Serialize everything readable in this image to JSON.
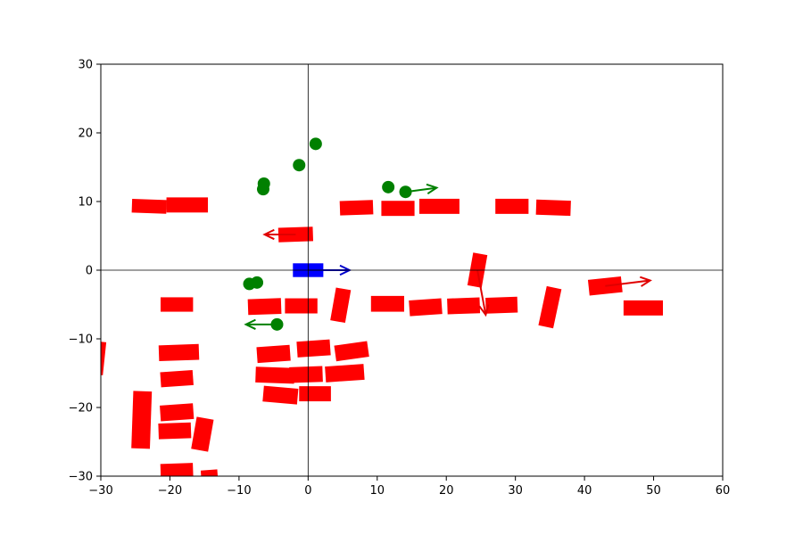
{
  "chart_data": {
    "type": "scatter",
    "title": "",
    "xlabel": "",
    "ylabel": "",
    "xlim": [
      -30,
      60
    ],
    "ylim": [
      -30,
      30
    ],
    "grid": false,
    "origin_axes": true,
    "colors": {
      "ego": "#0000ff",
      "vehicle": "#ff0000",
      "pedestrian": "#008000",
      "ego_arrow": "#0000cc",
      "vehicle_arrow": "#e00000",
      "pedestrian_arrow": "#008000"
    },
    "x_ticks": [
      {
        "value": -30,
        "label": "−30"
      },
      {
        "value": -20,
        "label": "−20"
      },
      {
        "value": -10,
        "label": "−10"
      },
      {
        "value": 0,
        "label": "0"
      },
      {
        "value": 10,
        "label": "10"
      },
      {
        "value": 20,
        "label": "20"
      },
      {
        "value": 30,
        "label": "30"
      },
      {
        "value": 40,
        "label": "40"
      },
      {
        "value": 50,
        "label": "50"
      },
      {
        "value": 60,
        "label": "60"
      }
    ],
    "y_ticks": [
      {
        "value": -30,
        "label": "−30"
      },
      {
        "value": -20,
        "label": "−20"
      },
      {
        "value": -10,
        "label": "−10"
      },
      {
        "value": 0,
        "label": "0"
      },
      {
        "value": 10,
        "label": "10"
      },
      {
        "value": 20,
        "label": "20"
      },
      {
        "value": 30,
        "label": "30"
      }
    ],
    "ego": {
      "x": 0,
      "y": 0,
      "length": 4.4,
      "width": 2.0,
      "heading": 0,
      "velocity": [
        6.0,
        0
      ]
    },
    "vehicles": [
      {
        "x": -23.0,
        "y": 9.3,
        "length": 5.0,
        "width": 2.0,
        "heading": -2
      },
      {
        "x": -17.5,
        "y": 9.5,
        "length": 6.0,
        "width": 2.2,
        "heading": 0
      },
      {
        "x": -1.8,
        "y": 5.2,
        "length": 5.0,
        "width": 2.1,
        "heading": 2,
        "velocity": [
          -4.5,
          0
        ]
      },
      {
        "x": 7.0,
        "y": 9.1,
        "length": 4.8,
        "width": 2.1,
        "heading": 2
      },
      {
        "x": 13.0,
        "y": 9.0,
        "length": 4.8,
        "width": 2.2,
        "heading": 0
      },
      {
        "x": 19.0,
        "y": 9.3,
        "length": 5.8,
        "width": 2.2,
        "heading": 0
      },
      {
        "x": 29.5,
        "y": 9.3,
        "length": 4.8,
        "width": 2.2,
        "heading": 0
      },
      {
        "x": 35.5,
        "y": 9.1,
        "length": 5.0,
        "width": 2.2,
        "heading": -2
      },
      {
        "x": 24.5,
        "y": 0.0,
        "length": 4.8,
        "width": 2.1,
        "heading": 80,
        "velocity": [
          1.2,
          -6.5
        ]
      },
      {
        "x": -19.0,
        "y": -5.0,
        "length": 4.7,
        "width": 2.1,
        "heading": 0
      },
      {
        "x": -6.3,
        "y": -5.3,
        "length": 4.8,
        "width": 2.3,
        "heading": 2
      },
      {
        "x": -1.0,
        "y": -5.2,
        "length": 4.7,
        "width": 2.2,
        "heading": 0
      },
      {
        "x": 4.7,
        "y": -5.1,
        "length": 4.8,
        "width": 2.2,
        "heading": 80
      },
      {
        "x": 11.5,
        "y": -4.9,
        "length": 4.8,
        "width": 2.3,
        "heading": 0
      },
      {
        "x": 17.0,
        "y": -5.4,
        "length": 4.7,
        "width": 2.3,
        "heading": 4
      },
      {
        "x": 22.5,
        "y": -5.2,
        "length": 4.7,
        "width": 2.3,
        "heading": 2
      },
      {
        "x": 28.0,
        "y": -5.1,
        "length": 4.6,
        "width": 2.3,
        "heading": 2
      },
      {
        "x": 35.0,
        "y": -5.4,
        "length": 5.8,
        "width": 2.2,
        "heading": 78
      },
      {
        "x": 43.0,
        "y": -2.3,
        "length": 4.8,
        "width": 2.3,
        "heading": 6,
        "velocity": [
          6.5,
          0.8
        ]
      },
      {
        "x": 48.5,
        "y": -5.5,
        "length": 5.7,
        "width": 2.2,
        "heading": 0
      },
      {
        "x": -30.5,
        "y": -12.8,
        "length": 4.8,
        "width": 2.1,
        "heading": 84
      },
      {
        "x": -18.7,
        "y": -12.0,
        "length": 5.8,
        "width": 2.3,
        "heading": 2
      },
      {
        "x": -5.0,
        "y": -12.2,
        "length": 4.8,
        "width": 2.3,
        "heading": 4
      },
      {
        "x": 0.8,
        "y": -11.4,
        "length": 4.8,
        "width": 2.3,
        "heading": 4
      },
      {
        "x": 6.3,
        "y": -11.8,
        "length": 4.8,
        "width": 2.3,
        "heading": 8
      },
      {
        "x": -19.0,
        "y": -15.8,
        "length": 4.7,
        "width": 2.2,
        "heading": 4
      },
      {
        "x": -4.8,
        "y": -15.3,
        "length": 5.6,
        "width": 2.3,
        "heading": -2
      },
      {
        "x": -0.3,
        "y": -15.2,
        "length": 4.8,
        "width": 2.3,
        "heading": 2
      },
      {
        "x": 5.3,
        "y": -15.0,
        "length": 5.6,
        "width": 2.3,
        "heading": 4
      },
      {
        "x": -4.0,
        "y": -18.2,
        "length": 5.0,
        "width": 2.3,
        "heading": -5
      },
      {
        "x": 1.0,
        "y": -18.0,
        "length": 4.6,
        "width": 2.2,
        "heading": 0
      },
      {
        "x": -24.1,
        "y": -21.8,
        "length": 8.3,
        "width": 2.7,
        "heading": 88
      },
      {
        "x": -19.0,
        "y": -20.7,
        "length": 4.8,
        "width": 2.3,
        "heading": 4
      },
      {
        "x": -19.3,
        "y": -23.4,
        "length": 4.7,
        "width": 2.3,
        "heading": 2
      },
      {
        "x": -15.3,
        "y": -23.9,
        "length": 4.7,
        "width": 2.5,
        "heading": 80
      },
      {
        "x": -19.0,
        "y": -29.3,
        "length": 4.7,
        "width": 2.3,
        "heading": 2
      },
      {
        "x": -14.3,
        "y": -29.8,
        "length": 2.4,
        "width": 1.4,
        "heading": 4
      }
    ],
    "pedestrians": [
      {
        "x": 1.1,
        "y": 18.4
      },
      {
        "x": -1.3,
        "y": 15.3
      },
      {
        "x": -6.4,
        "y": 12.6
      },
      {
        "x": -6.5,
        "y": 11.8
      },
      {
        "x": 11.6,
        "y": 12.1
      },
      {
        "x": 14.1,
        "y": 11.4,
        "velocity": [
          4.5,
          0.6
        ]
      },
      {
        "x": -8.5,
        "y": -2.0
      },
      {
        "x": -7.4,
        "y": -1.8
      },
      {
        "x": -4.5,
        "y": -7.9,
        "velocity": [
          -4.5,
          0
        ]
      }
    ]
  }
}
